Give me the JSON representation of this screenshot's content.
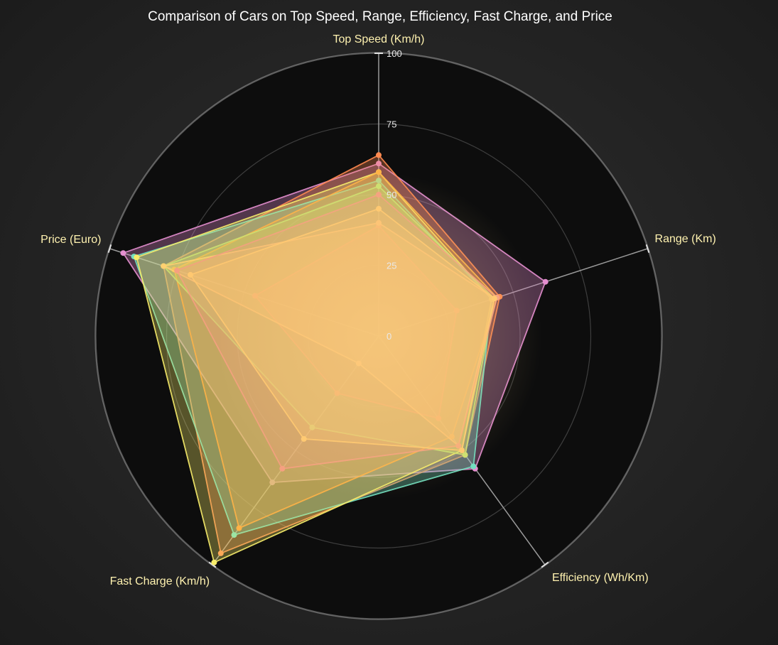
{
  "chart_data": {
    "type": "radar",
    "title": "Comparison of Cars on Top Speed, Range, Efficiency, Fast Charge, and Price",
    "axes": [
      "Top Speed (Km/h)",
      "Range (Km)",
      "Efficiency (Wh/Km)",
      "Fast Charge (Km/h)",
      "Price (Euro)"
    ],
    "ticks": [
      "0",
      "25",
      "50",
      "75",
      "100"
    ],
    "range": [
      0,
      100
    ],
    "grid": true,
    "series": [
      {
        "color": "#e58fd0",
        "values": [
          61,
          62,
          58,
          64,
          95
        ]
      },
      {
        "color": "#ff8a50",
        "values": [
          64,
          45,
          52,
          95,
          80
        ]
      },
      {
        "color": "#72e0c0",
        "values": [
          55,
          42,
          57,
          87,
          91
        ]
      },
      {
        "color": "#f7ec6a",
        "values": [
          58,
          42,
          50,
          99,
          90
        ]
      },
      {
        "color": "#ffb347",
        "values": [
          58,
          44,
          44,
          84,
          76
        ]
      },
      {
        "color": "#cde070",
        "values": [
          53,
          43,
          52,
          40,
          80
        ]
      },
      {
        "color": "#f2b36a",
        "values": [
          39,
          29,
          36,
          25,
          46
        ]
      },
      {
        "color": "#ffd070",
        "values": [
          40,
          43,
          48,
          12,
          80
        ]
      },
      {
        "color": "#f5a080",
        "values": [
          50,
          44,
          48,
          58,
          75
        ]
      },
      {
        "color": "#ffc870",
        "values": [
          45,
          43,
          50,
          45,
          70
        ]
      }
    ]
  }
}
